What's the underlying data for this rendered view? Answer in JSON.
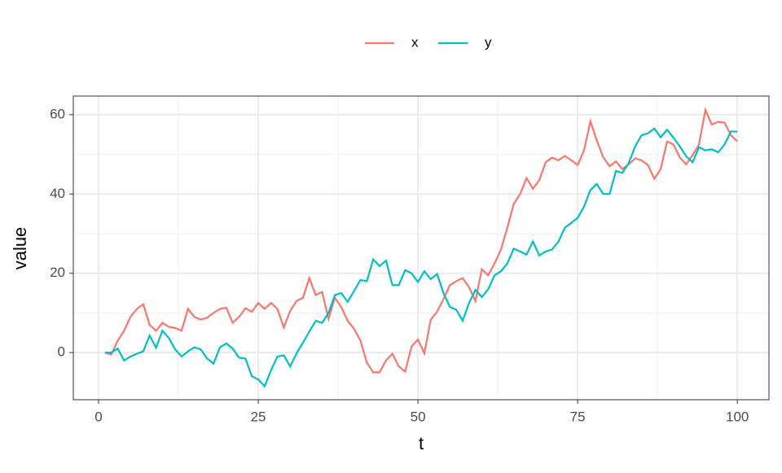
{
  "chart_data": {
    "type": "line",
    "xlabel": "t",
    "ylabel": "value",
    "x": [
      1,
      2,
      3,
      4,
      5,
      6,
      7,
      8,
      9,
      10,
      11,
      12,
      13,
      14,
      15,
      16,
      17,
      18,
      19,
      20,
      21,
      22,
      23,
      24,
      25,
      26,
      27,
      28,
      29,
      30,
      31,
      32,
      33,
      34,
      35,
      36,
      37,
      38,
      39,
      40,
      41,
      42,
      43,
      44,
      45,
      46,
      47,
      48,
      49,
      50,
      51,
      52,
      53,
      54,
      55,
      56,
      57,
      58,
      59,
      60,
      61,
      62,
      63,
      64,
      65,
      66,
      67,
      68,
      69,
      70,
      71,
      72,
      73,
      74,
      75,
      76,
      77,
      78,
      79,
      80,
      81,
      82,
      83,
      84,
      85,
      86,
      87,
      88,
      89,
      90,
      91,
      92,
      93,
      94,
      95,
      96,
      97,
      98,
      99,
      100
    ],
    "series": [
      {
        "name": "x",
        "color": "#f8766d",
        "values": [
          0,
          -0.5,
          3,
          5.5,
          9,
          11,
          12.2,
          7,
          5.5,
          7.5,
          6.5,
          6.2,
          5.5,
          11,
          9,
          8.3,
          8.8,
          10,
          11,
          11.3,
          7.5,
          9,
          11.2,
          10.3,
          12.5,
          11,
          12.5,
          11,
          6.3,
          10.5,
          13,
          13.8,
          18.8,
          14.5,
          15.3,
          8.5,
          13.8,
          11.5,
          8,
          6,
          3,
          -2.5,
          -5,
          -5,
          -2,
          -0.3,
          -3.5,
          -4.8,
          1.5,
          3.3,
          -0.2,
          8.3,
          10.3,
          13.5,
          17,
          18,
          18.8,
          16.5,
          13,
          21,
          19.5,
          22.5,
          26,
          31.5,
          37.5,
          40,
          44,
          41.3,
          43.5,
          48,
          49.2,
          48.5,
          49.6,
          48.5,
          47.3,
          51,
          58.3,
          53.5,
          49.3,
          47,
          48.2,
          46.3,
          47.5,
          49,
          48.5,
          47.3,
          43.8,
          46.3,
          53.2,
          52.5,
          49.2,
          47.5,
          49.8,
          52.5,
          61.2,
          57.5,
          58.2,
          58,
          54.8,
          53.3
        ]
      },
      {
        "name": "y",
        "color": "#00bfc4",
        "values": [
          0,
          0,
          1,
          -2,
          -1,
          -0.3,
          0.3,
          4.3,
          1.2,
          5.5,
          3.7,
          0.8,
          -1,
          0.3,
          1.3,
          0.8,
          -1.5,
          -2.8,
          1.3,
          2.3,
          1,
          -1.3,
          -1.5,
          -6,
          -6.8,
          -8.5,
          -4.5,
          -1,
          -0.7,
          -3.5,
          -0.2,
          2.5,
          5.3,
          8,
          7.5,
          10,
          14.5,
          15,
          12.8,
          15.5,
          18.3,
          18,
          23.5,
          21.8,
          23.2,
          17,
          17,
          20.8,
          20,
          17.8,
          20.5,
          18.5,
          19.8,
          15,
          11.5,
          10.8,
          8,
          12.5,
          15.8,
          14,
          16,
          19.5,
          20.5,
          22.5,
          26.2,
          25.5,
          24.7,
          28,
          24.5,
          25.5,
          26,
          28,
          31.5,
          32.7,
          34,
          36.8,
          41,
          42.5,
          40,
          40,
          45.8,
          45.3,
          47.8,
          52,
          54.8,
          55.3,
          56.5,
          54.3,
          56.2,
          54.2,
          52,
          49.5,
          48,
          51.8,
          51,
          51.3,
          50.5,
          52.5,
          55.8,
          55.7
        ]
      }
    ],
    "xlim": [
      -3.95,
      104.95
    ],
    "xticks": [
      0,
      25,
      50,
      75,
      100
    ],
    "minor_xticks": [
      12.5,
      37.5,
      62.5,
      87.5
    ],
    "ylim": [
      -11.9,
      64.7
    ],
    "yticks": [
      0,
      20,
      40,
      60
    ],
    "minor_yticks": [
      10,
      30,
      50
    ],
    "grid": true,
    "legend": "top"
  }
}
